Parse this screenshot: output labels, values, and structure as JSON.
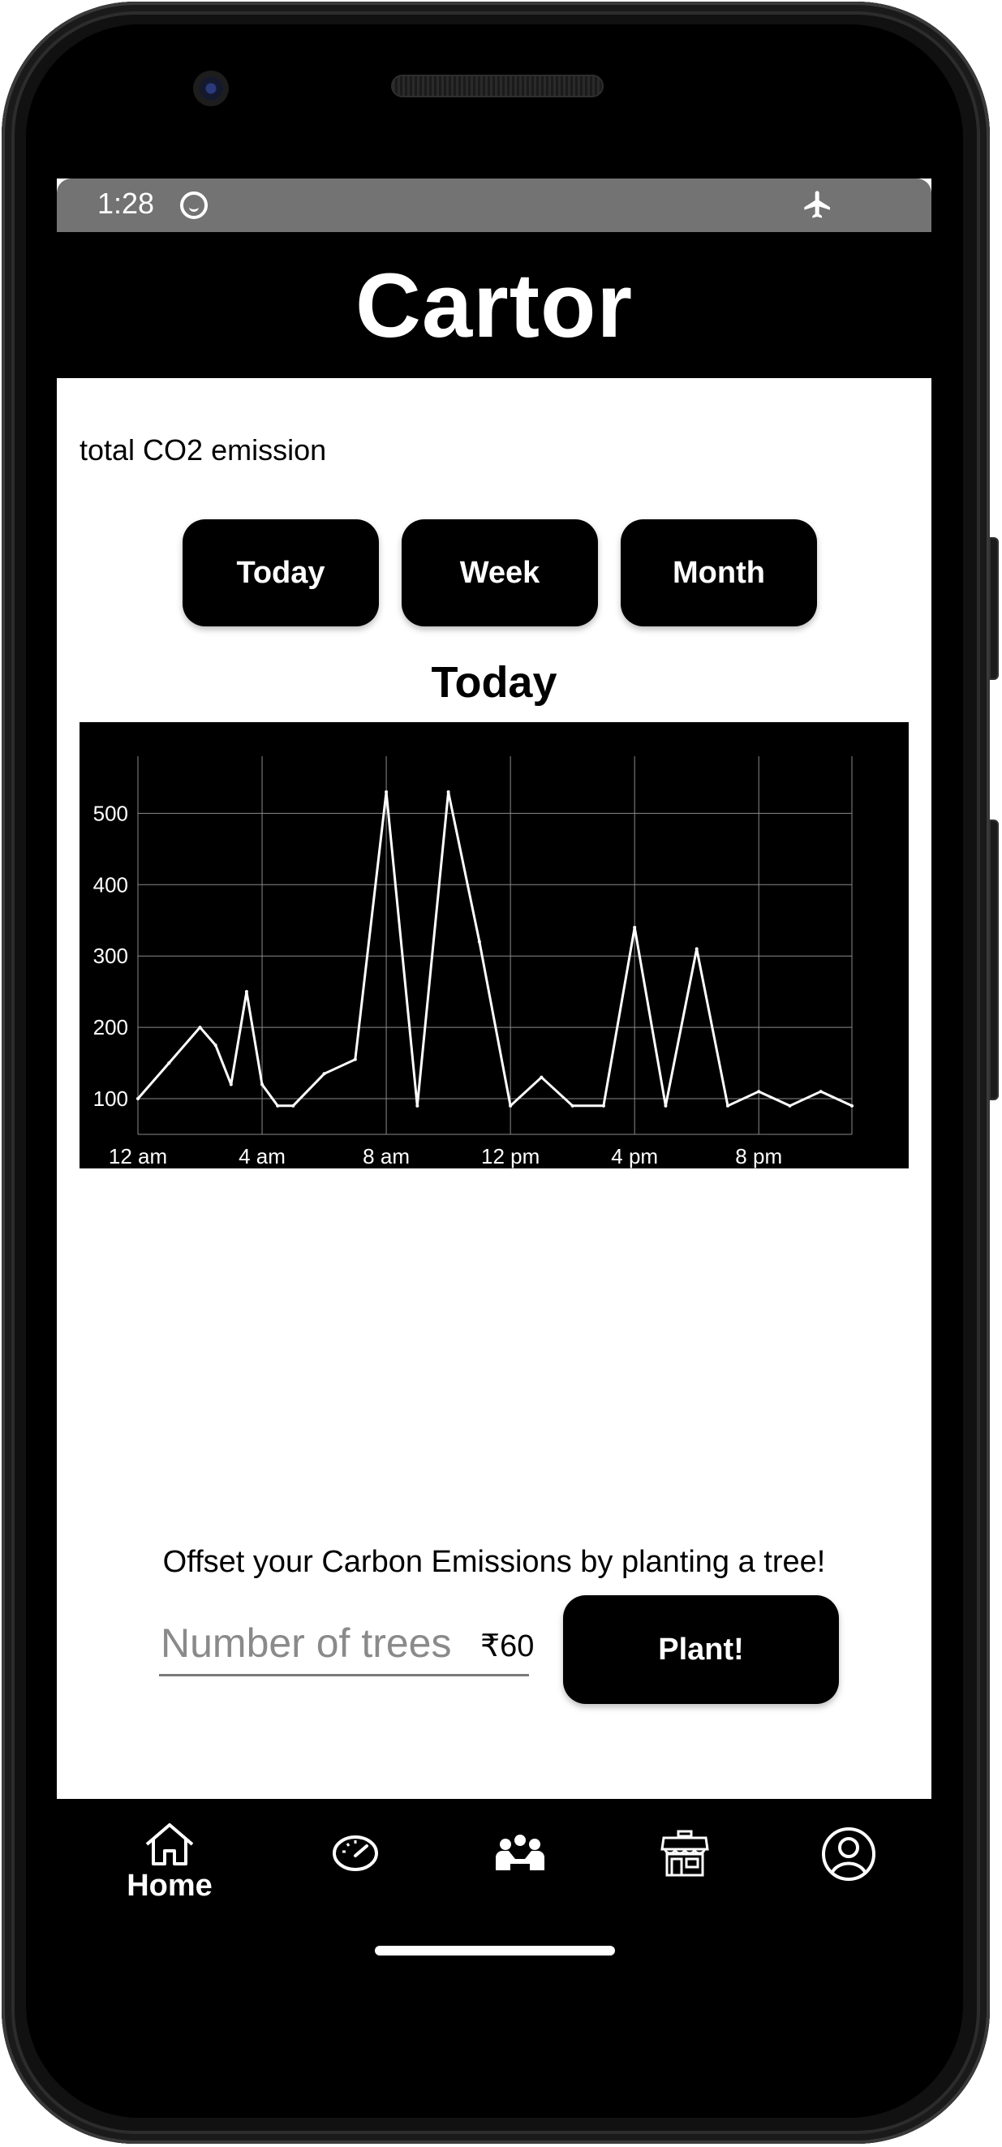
{
  "status_bar": {
    "time": "1:28"
  },
  "app": {
    "title": "Cartor"
  },
  "emissions": {
    "label": "total CO2 emission",
    "ranges": [
      "Today",
      "Week",
      "Month"
    ],
    "selected_range_title": "Today"
  },
  "chart_data": {
    "type": "line",
    "title": "Today",
    "x_tick_labels": [
      "12 am",
      "4 am",
      "8 am",
      "12 pm",
      "4 pm",
      "8 pm"
    ],
    "x_tick_hours": [
      0,
      4,
      8,
      12,
      16,
      20
    ],
    "xlim": [
      0,
      23
    ],
    "ylim": [
      50,
      580
    ],
    "y_ticks": [
      100,
      200,
      300,
      400,
      500
    ],
    "grid": true,
    "series": [
      {
        "x": [
          0,
          1,
          2,
          2.5,
          3,
          3.5,
          4,
          4.5,
          5,
          6,
          7,
          8,
          9,
          10,
          11,
          12,
          13,
          14,
          15,
          16,
          17,
          18,
          19,
          20,
          21,
          22,
          23
        ],
        "values": [
          100,
          150,
          200,
          175,
          120,
          250,
          120,
          90,
          90,
          135,
          155,
          530,
          90,
          530,
          320,
          90,
          130,
          90,
          90,
          340,
          90,
          310,
          90,
          110,
          90,
          110,
          90
        ]
      }
    ],
    "colors": {
      "background": "#000000",
      "line": "#ffffff",
      "grid": "#8a8a8a"
    }
  },
  "offset": {
    "text": "Offset your Carbon Emissions by planting a tree!",
    "input_placeholder": "Number of trees",
    "input_value": "",
    "price": "₹60",
    "button_label": "Plant!"
  },
  "bottom_nav": {
    "items": [
      {
        "icon": "home-icon",
        "label": "Home"
      },
      {
        "icon": "speedometer-icon",
        "label": ""
      },
      {
        "icon": "community-icon",
        "label": ""
      },
      {
        "icon": "store-icon",
        "label": ""
      },
      {
        "icon": "profile-icon",
        "label": ""
      }
    ]
  }
}
